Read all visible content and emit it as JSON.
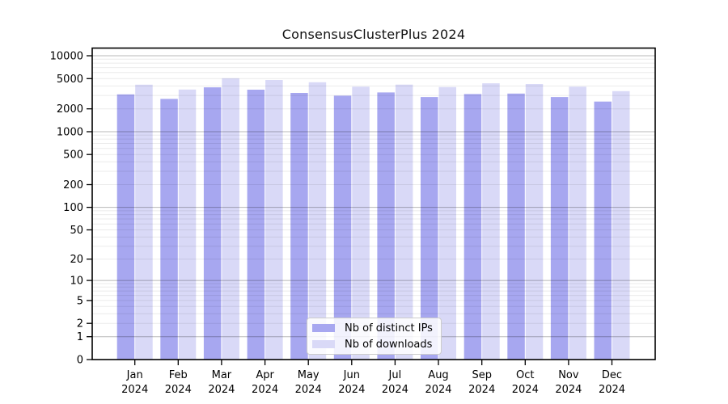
{
  "title": "ConsensusClusterPlus 2024",
  "colors": {
    "distinct_ips": "#a7a7f0",
    "downloads": "#d9d9f7",
    "major_grid": "rgba(0,0,0,0.28)",
    "minor_grid": "rgba(0,0,0,0.08)",
    "axis": "#000000",
    "text": "#000000"
  },
  "legend": {
    "items": [
      {
        "label": "Nb of distinct IPs",
        "color": "#a7a7f0"
      },
      {
        "label": "Nb of downloads",
        "color": "#d9d9f7"
      }
    ],
    "position": "lower center"
  },
  "x_axis": {
    "tick_months": [
      "Jan",
      "Feb",
      "Mar",
      "Apr",
      "May",
      "Jun",
      "Jul",
      "Aug",
      "Sep",
      "Oct",
      "Nov",
      "Dec"
    ],
    "tick_year": "2024"
  },
  "y_axis": {
    "tick_values": [
      10000,
      5000,
      2000,
      1000,
      500,
      200,
      100,
      50,
      20,
      10,
      5,
      2,
      1,
      0
    ],
    "scale": "log10(1+x)"
  },
  "chart_data": {
    "type": "bar",
    "title": "ConsensusClusterPlus 2024",
    "categories": [
      "Jan 2024",
      "Feb 2024",
      "Mar 2024",
      "Apr 2024",
      "May 2024",
      "Jun 2024",
      "Jul 2024",
      "Aug 2024",
      "Sep 2024",
      "Oct 2024",
      "Nov 2024",
      "Dec 2024"
    ],
    "series": [
      {
        "name": "Nb of distinct IPs",
        "color": "#a7a7f0",
        "values": [
          3100,
          2700,
          3840,
          3570,
          3240,
          2980,
          3290,
          2860,
          3130,
          3180,
          2860,
          2490
        ]
      },
      {
        "name": "Nb of downloads",
        "color": "#d9d9f7",
        "values": [
          4160,
          3590,
          5050,
          4790,
          4480,
          3910,
          4170,
          3870,
          4340,
          4240,
          3910,
          3420
        ]
      }
    ],
    "xlabel": "",
    "ylabel": "",
    "yscale": "log1p",
    "ylim": [
      0,
      12600
    ],
    "yticks": [
      10000,
      5000,
      2000,
      1000,
      500,
      200,
      100,
      50,
      20,
      10,
      5,
      2,
      1,
      0
    ],
    "grid": "horizontal major and minor log gridlines",
    "legend_position": "lower center"
  }
}
